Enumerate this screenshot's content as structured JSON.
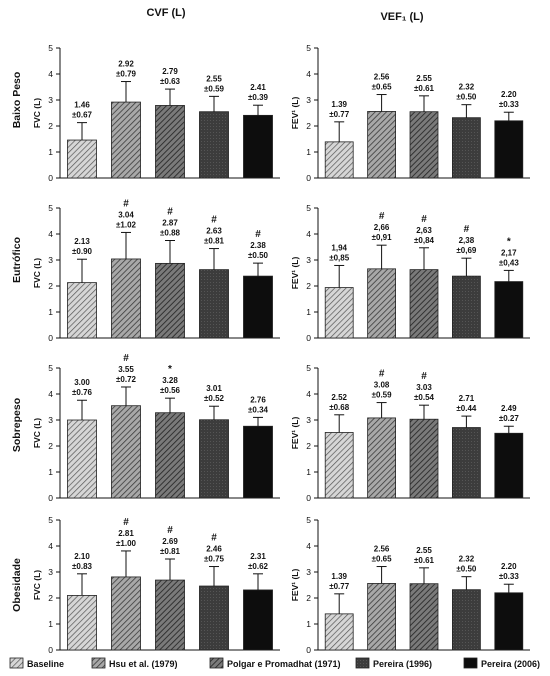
{
  "column_titles": [
    "CVF (L)",
    "VEF₁ (L)"
  ],
  "row_labels": [
    "Baixo Peso",
    "Eutrófico",
    "Sobrepeso",
    "Obesidade"
  ],
  "legend": [
    {
      "name": "Baseline",
      "pattern": "hatch-dense"
    },
    {
      "name": "Hsu et al. (1979)",
      "pattern": "hatch-med"
    },
    {
      "name": "Polgar e Promadhat (1971)",
      "pattern": "hatch-dark"
    },
    {
      "name": "Pereira (1996)",
      "pattern": "solid-dark"
    },
    {
      "name": "Pereira (2006)",
      "pattern": "solid-black"
    }
  ],
  "chart_data": [
    {
      "type": "bar",
      "column": "CVF (L)",
      "row": "Baixo Peso",
      "ylabel": "FVC (L)",
      "ylim": [
        0,
        5
      ],
      "yticks": [
        "0",
        "1",
        "2",
        "3",
        "4",
        "5"
      ],
      "categories": [
        "Baseline",
        "Hsu et al. (1979)",
        "Polgar e Promadhat (1971)",
        "Pereira (1996)",
        "Pereira (2006)"
      ],
      "values": [
        1.46,
        2.92,
        2.79,
        2.55,
        2.41
      ],
      "sd": [
        0.67,
        0.79,
        0.63,
        0.59,
        0.39
      ],
      "value_labels": [
        "1.46",
        "2.92",
        "2.79",
        "2.55",
        "2.41"
      ],
      "sd_labels": [
        "±0.67",
        "±0.79",
        "±0.63",
        "±0.59",
        "±0.39"
      ],
      "marks": [
        "",
        "",
        "",
        "",
        ""
      ]
    },
    {
      "type": "bar",
      "column": "VEF₁ (L)",
      "row": "Baixo Peso",
      "ylabel": "FEV¹ (L)",
      "ylim": [
        0,
        5
      ],
      "yticks": [
        "0",
        "1",
        "2",
        "3",
        "4",
        "5"
      ],
      "categories": [
        "Baseline",
        "Hsu et al. (1979)",
        "Polgar e Promadhat (1971)",
        "Pereira (1996)",
        "Pereira (2006)"
      ],
      "values": [
        1.39,
        2.56,
        2.55,
        2.32,
        2.2
      ],
      "sd": [
        0.77,
        0.65,
        0.61,
        0.5,
        0.33
      ],
      "value_labels": [
        "1.39",
        "2.56",
        "2.55",
        "2.32",
        "2.20"
      ],
      "sd_labels": [
        "±0.77",
        "±0.65",
        "±0.61",
        "±0.50",
        "±0.33"
      ],
      "marks": [
        "",
        "",
        "",
        "",
        ""
      ]
    },
    {
      "type": "bar",
      "column": "CVF (L)",
      "row": "Eutrófico",
      "ylabel": "FVC (L)",
      "ylim": [
        0,
        5
      ],
      "yticks": [
        "0",
        "1",
        "2",
        "3",
        "4",
        "5"
      ],
      "categories": [
        "Baseline",
        "Hsu et al. (1979)",
        "Polgar e Promadhat (1971)",
        "Pereira (1996)",
        "Pereira (2006)"
      ],
      "values": [
        2.13,
        3.04,
        2.87,
        2.63,
        2.38
      ],
      "sd": [
        0.9,
        1.02,
        0.88,
        0.81,
        0.5
      ],
      "value_labels": [
        "2.13",
        "3.04",
        "2.87",
        "2.63",
        "2.38"
      ],
      "sd_labels": [
        "±0.90",
        "±1.02",
        "±0.88",
        "±0.81",
        "±0.50"
      ],
      "marks": [
        "",
        "#",
        "#",
        "#",
        "#"
      ]
    },
    {
      "type": "bar",
      "column": "VEF₁ (L)",
      "row": "Eutrófico",
      "ylabel": "FEV¹ (L)",
      "ylim": [
        0,
        5
      ],
      "yticks": [
        "0",
        "1",
        "2",
        "3",
        "4",
        "5"
      ],
      "categories": [
        "Baseline",
        "Hsu et al. (1979)",
        "Polgar e Promadhat (1971)",
        "Pereira (1996)",
        "Pereira (2006)"
      ],
      "values": [
        1.94,
        2.66,
        2.63,
        2.38,
        2.17
      ],
      "sd": [
        0.85,
        0.91,
        0.84,
        0.69,
        0.43
      ],
      "value_labels": [
        "1,94",
        "2,66",
        "2,63",
        "2,38",
        "2,17"
      ],
      "sd_labels": [
        "±0,85",
        "±0,91",
        "±0,84",
        "±0,69",
        "±0,43"
      ],
      "marks": [
        "",
        "#",
        "#",
        "#",
        "*"
      ]
    },
    {
      "type": "bar",
      "column": "CVF (L)",
      "row": "Sobrepeso",
      "ylabel": "FVC (L)",
      "ylim": [
        0,
        5
      ],
      "yticks": [
        "0",
        "1",
        "2",
        "3",
        "4",
        "5"
      ],
      "categories": [
        "Baseline",
        "Hsu et al. (1979)",
        "Polgar e Promadhat (1971)",
        "Pereira (1996)",
        "Pereira (2006)"
      ],
      "values": [
        3.0,
        3.55,
        3.28,
        3.01,
        2.76
      ],
      "sd": [
        0.76,
        0.72,
        0.56,
        0.52,
        0.34
      ],
      "value_labels": [
        "3.00",
        "3.55",
        "3.28",
        "3.01",
        "2.76"
      ],
      "sd_labels": [
        "±0.76",
        "±0.72",
        "±0.56",
        "±0.52",
        "±0.34"
      ],
      "marks": [
        "",
        "#",
        "*",
        "",
        ""
      ]
    },
    {
      "type": "bar",
      "column": "VEF₁ (L)",
      "row": "Sobrepeso",
      "ylabel": "FEV¹ (L)",
      "ylim": [
        0,
        5
      ],
      "yticks": [
        "0",
        "1",
        "2",
        "3",
        "4",
        "5"
      ],
      "categories": [
        "Baseline",
        "Hsu et al. (1979)",
        "Polgar e Promadhat (1971)",
        "Pereira (1996)",
        "Pereira (2006)"
      ],
      "values": [
        2.52,
        3.08,
        3.03,
        2.71,
        2.49
      ],
      "sd": [
        0.68,
        0.59,
        0.54,
        0.44,
        0.27
      ],
      "value_labels": [
        "2.52",
        "3.08",
        "3.03",
        "2.71",
        "2.49"
      ],
      "sd_labels": [
        "±0.68",
        "±0.59",
        "±0.54",
        "±0.44",
        "±0.27"
      ],
      "marks": [
        "",
        "#",
        "#",
        "",
        ""
      ]
    },
    {
      "type": "bar",
      "column": "CVF (L)",
      "row": "Obesidade",
      "ylabel": "FVC (L)",
      "ylim": [
        0,
        5
      ],
      "yticks": [
        "0",
        "1",
        "2",
        "3",
        "4",
        "5"
      ],
      "categories": [
        "Baseline",
        "Hsu et al. (1979)",
        "Polgar e Promadhat (1971)",
        "Pereira (1996)",
        "Pereira (2006)"
      ],
      "values": [
        2.1,
        2.81,
        2.69,
        2.46,
        2.31
      ],
      "sd": [
        0.83,
        1.0,
        0.81,
        0.75,
        0.62
      ],
      "value_labels": [
        "2.10",
        "2.81",
        "2.69",
        "2.46",
        "2.31"
      ],
      "sd_labels": [
        "±0.83",
        "±1.00",
        "±0.81",
        "±0.75",
        "±0.62"
      ],
      "marks": [
        "",
        "#",
        "#",
        "#",
        ""
      ]
    },
    {
      "type": "bar",
      "column": "VEF₁ (L)",
      "row": "Obesidade",
      "ylabel": "FEV¹ (L)",
      "ylim": [
        0,
        5
      ],
      "yticks": [
        "0",
        "1",
        "2",
        "3",
        "4",
        "5"
      ],
      "categories": [
        "Baseline",
        "Hsu et al. (1979)",
        "Polgar e Promadhat (1971)",
        "Pereira (1996)",
        "Pereira (2006)"
      ],
      "values": [
        1.39,
        2.56,
        2.55,
        2.32,
        2.2
      ],
      "sd": [
        0.77,
        0.65,
        0.61,
        0.5,
        0.33
      ],
      "value_labels": [
        "1.39",
        "2.56",
        "2.55",
        "2.32",
        "2.20"
      ],
      "sd_labels": [
        "±0.77",
        "±0.65",
        "±0.61",
        "±0.50",
        "±0.33"
      ],
      "marks": [
        "",
        "",
        "",
        "",
        ""
      ]
    }
  ]
}
